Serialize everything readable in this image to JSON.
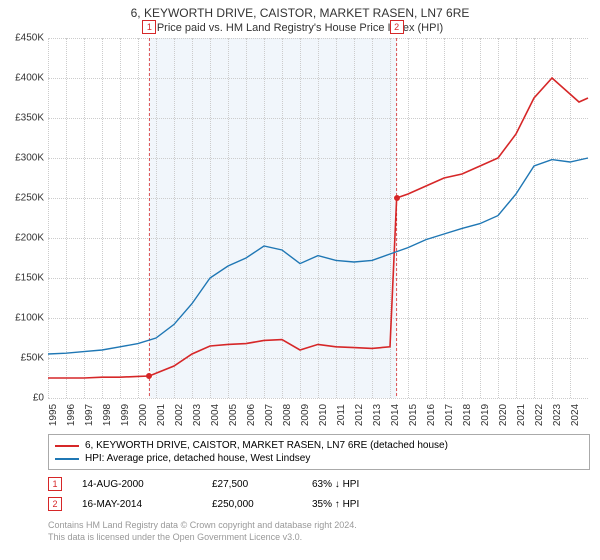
{
  "title": "6, KEYWORTH DRIVE, CAISTOR, MARKET RASEN, LN7 6RE",
  "subtitle": "Price paid vs. HM Land Registry's House Price Index (HPI)",
  "chart": {
    "type": "line",
    "background_color": "#ffffff",
    "grid_color": "#cccccc",
    "shade_color": "#e8f0f8",
    "ylim": [
      0,
      450000
    ],
    "ytick_step": 50000,
    "yticks": [
      "£0",
      "£50K",
      "£100K",
      "£150K",
      "£200K",
      "£250K",
      "£300K",
      "£350K",
      "£400K",
      "£450K"
    ],
    "x_years": [
      1995,
      1996,
      1997,
      1998,
      1999,
      2000,
      2001,
      2002,
      2003,
      2004,
      2005,
      2006,
      2007,
      2008,
      2009,
      2010,
      2011,
      2012,
      2013,
      2014,
      2015,
      2016,
      2017,
      2018,
      2019,
      2020,
      2021,
      2022,
      2023,
      2024
    ],
    "xmin": 1995,
    "xmax": 2025,
    "series": [
      {
        "name": "property",
        "label": "6, KEYWORTH DRIVE, CAISTOR, MARKET RASEN, LN7 6RE (detached house)",
        "color": "#d62728",
        "line_width": 1.6,
        "data": [
          [
            1995,
            25000
          ],
          [
            1996,
            25000
          ],
          [
            1997,
            25000
          ],
          [
            1998,
            26000
          ],
          [
            1999,
            26000
          ],
          [
            2000,
            27000
          ],
          [
            2000.63,
            27500
          ],
          [
            2001,
            31000
          ],
          [
            2002,
            40000
          ],
          [
            2003,
            55000
          ],
          [
            2004,
            65000
          ],
          [
            2005,
            67000
          ],
          [
            2006,
            68000
          ],
          [
            2007,
            72000
          ],
          [
            2008,
            73000
          ],
          [
            2009,
            60000
          ],
          [
            2010,
            67000
          ],
          [
            2011,
            64000
          ],
          [
            2012,
            63000
          ],
          [
            2013,
            62000
          ],
          [
            2014.0,
            64000
          ],
          [
            2014.37,
            250000
          ],
          [
            2015,
            255000
          ],
          [
            2016,
            265000
          ],
          [
            2017,
            275000
          ],
          [
            2018,
            280000
          ],
          [
            2019,
            290000
          ],
          [
            2020,
            300000
          ],
          [
            2021,
            330000
          ],
          [
            2022,
            375000
          ],
          [
            2023,
            400000
          ],
          [
            2024,
            380000
          ],
          [
            2024.5,
            370000
          ],
          [
            2025,
            375000
          ]
        ]
      },
      {
        "name": "hpi",
        "label": "HPI: Average price, detached house, West Lindsey",
        "color": "#1f77b4",
        "line_width": 1.4,
        "data": [
          [
            1995,
            55000
          ],
          [
            1996,
            56000
          ],
          [
            1997,
            58000
          ],
          [
            1998,
            60000
          ],
          [
            1999,
            64000
          ],
          [
            2000,
            68000
          ],
          [
            2001,
            75000
          ],
          [
            2002,
            92000
          ],
          [
            2003,
            118000
          ],
          [
            2004,
            150000
          ],
          [
            2005,
            165000
          ],
          [
            2006,
            175000
          ],
          [
            2007,
            190000
          ],
          [
            2008,
            185000
          ],
          [
            2009,
            168000
          ],
          [
            2010,
            178000
          ],
          [
            2011,
            172000
          ],
          [
            2012,
            170000
          ],
          [
            2013,
            172000
          ],
          [
            2014,
            180000
          ],
          [
            2015,
            188000
          ],
          [
            2016,
            198000
          ],
          [
            2017,
            205000
          ],
          [
            2018,
            212000
          ],
          [
            2019,
            218000
          ],
          [
            2020,
            228000
          ],
          [
            2021,
            255000
          ],
          [
            2022,
            290000
          ],
          [
            2023,
            298000
          ],
          [
            2024,
            295000
          ],
          [
            2025,
            300000
          ]
        ]
      }
    ],
    "sale_points": [
      {
        "id": "1",
        "year": 2000.63,
        "value": 27500,
        "color": "#d62728"
      },
      {
        "id": "2",
        "year": 2014.37,
        "value": 250000,
        "color": "#d62728"
      }
    ],
    "marker_labels": [
      {
        "id": "1",
        "year": 2000.63,
        "top_offset": -18,
        "color": "#d62728"
      },
      {
        "id": "2",
        "year": 2014.37,
        "top_offset": -18,
        "color": "#d62728"
      }
    ],
    "shaded_ranges": [
      {
        "from": 2000.63,
        "to": 2014.37
      }
    ]
  },
  "legend": {
    "items": [
      {
        "color": "#d62728",
        "label_path": "chart.series.0.label"
      },
      {
        "color": "#1f77b4",
        "label_path": "chart.series.1.label"
      }
    ]
  },
  "transactions": [
    {
      "marker": "1",
      "marker_color": "#d62728",
      "date": "14-AUG-2000",
      "price": "£27,500",
      "pct": "63% ↓ HPI"
    },
    {
      "marker": "2",
      "marker_color": "#d62728",
      "date": "16-MAY-2014",
      "price": "£250,000",
      "pct": "35% ↑ HPI"
    }
  ],
  "footer": {
    "line1": "Contains HM Land Registry data © Crown copyright and database right 2024.",
    "line2": "This data is licensed under the Open Government Licence v3.0."
  }
}
